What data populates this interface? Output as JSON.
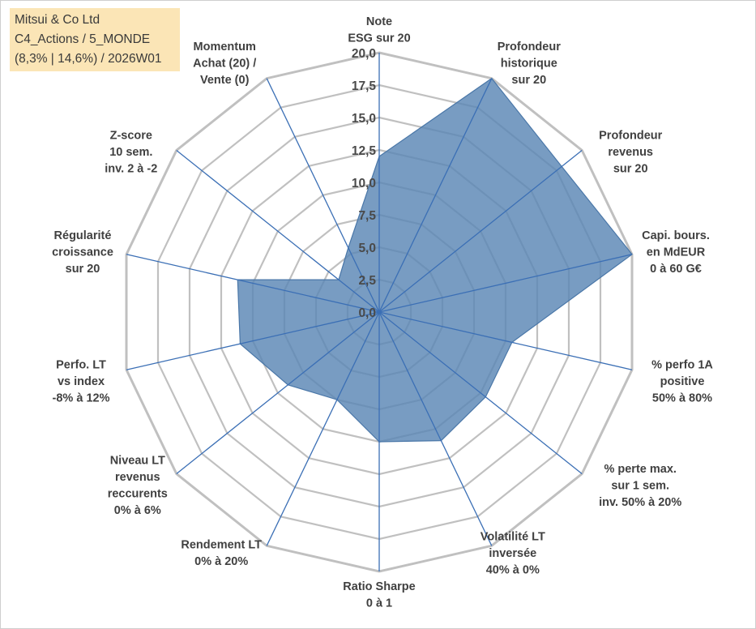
{
  "title_box": {
    "line1": "Mitsui & Co Ltd",
    "line2": "C4_Actions / 5_MONDE",
    "line3": "(8,3% | 14,6%) / 2026W01"
  },
  "colors": {
    "fill": "#5a86b5",
    "stroke": "#4a77a8",
    "spoke": "#3b6fb5",
    "grid": "#c0c0c0",
    "title_bg": "#fbe5b6"
  },
  "chart_data": {
    "type": "radar",
    "rmax": 20,
    "ticks": [
      "0,0",
      "2,5",
      "5,0",
      "7,5",
      "10,0",
      "12,5",
      "15,0",
      "17,5",
      "20,0"
    ],
    "tick_values": [
      0,
      2.5,
      5,
      7.5,
      10,
      12.5,
      15,
      17.5,
      20
    ],
    "categories": [
      [
        "Note",
        "ESG sur 20"
      ],
      [
        "Profondeur",
        "historique",
        "sur 20"
      ],
      [
        "Profondeur",
        "revenus",
        "sur 20"
      ],
      [
        "Capi. bours.",
        "en MdEUR",
        "0 à 60 G€"
      ],
      [
        "% perfo 1A",
        "positive",
        "50% à 80%"
      ],
      [
        "% perte max.",
        "sur 1 sem.",
        "inv. 50% à 20%"
      ],
      [
        "Volatilité LT",
        "inversée",
        "40% à 0%"
      ],
      [
        "Ratio Sharpe",
        "0 à 1"
      ],
      [
        "Rendement LT",
        "0% à 20%"
      ],
      [
        "Niveau LT",
        "revenus",
        "reccurents",
        "0% à 6%"
      ],
      [
        "Perfo. LT",
        "vs index",
        "-8% à 12%"
      ],
      [
        "Régularité",
        "croissance",
        "sur 20"
      ],
      [
        "Z-score",
        "10 sem.",
        "inv. 2 à -2"
      ],
      [
        "Momentum",
        "Achat (20) /",
        "Vente (0)"
      ]
    ],
    "values": [
      12,
      20,
      18,
      20,
      10.5,
      10.5,
      11,
      10,
      7.5,
      9,
      11,
      11.2,
      4,
      5.5
    ]
  }
}
